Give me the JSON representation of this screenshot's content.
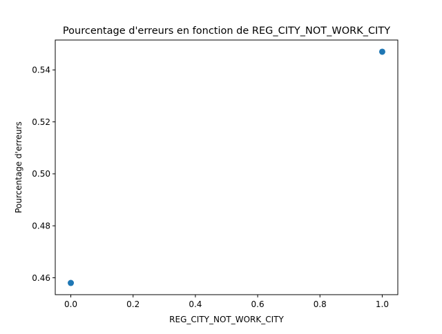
{
  "chart_data": {
    "type": "scatter",
    "title": "Pourcentage d'erreurs en fonction de REG_CITY_NOT_WORK_CITY",
    "xlabel": "REG_CITY_NOT_WORK_CITY",
    "ylabel": "Pourcentage d'erreurs",
    "xlim": [
      -0.05,
      1.05
    ],
    "ylim": [
      0.4535,
      0.5515
    ],
    "x_ticks": [
      0.0,
      0.2,
      0.4,
      0.6,
      0.8,
      1.0
    ],
    "x_tick_labels": [
      "0.0",
      "0.2",
      "0.4",
      "0.6",
      "0.8",
      "1.0"
    ],
    "y_ticks": [
      0.46,
      0.48,
      0.5,
      0.52,
      0.54
    ],
    "y_tick_labels": [
      "0.46",
      "0.48",
      "0.50",
      "0.52",
      "0.54"
    ],
    "grid": false,
    "legend": "none",
    "marker_color": "#1f77b4",
    "series": [
      {
        "x": [
          0.0,
          1.0
        ],
        "y": [
          0.458,
          0.547
        ]
      }
    ]
  }
}
